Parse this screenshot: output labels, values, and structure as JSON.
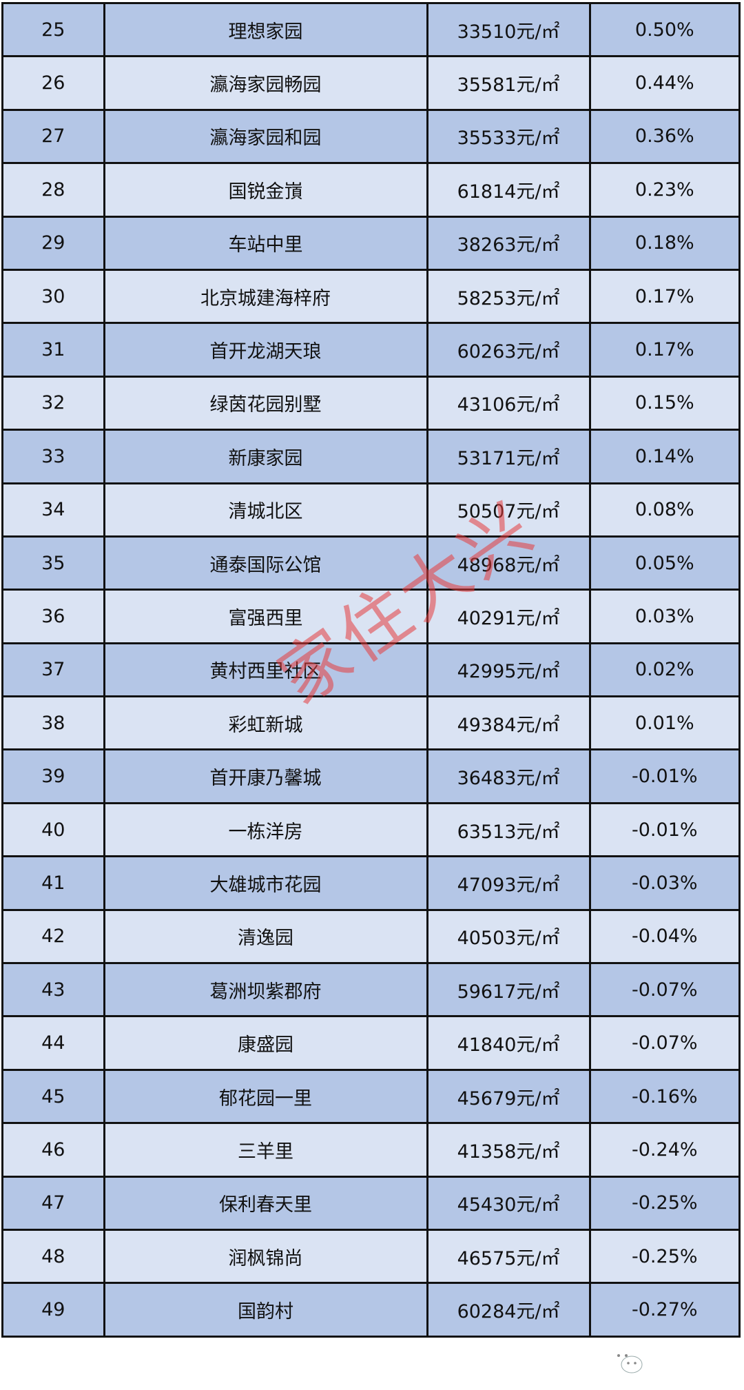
{
  "rows": [
    {
      "rank": "25",
      "name": "理想家园",
      "price": "33510元/㎡",
      "change": "0.50%"
    },
    {
      "rank": "26",
      "name": "瀛海家园畅园",
      "price": "35581元/㎡",
      "change": "0.44%"
    },
    {
      "rank": "27",
      "name": "瀛海家园和园",
      "price": "35533元/㎡",
      "change": "0.36%"
    },
    {
      "rank": "28",
      "name": "国锐金嵿",
      "price": "61814元/㎡",
      "change": "0.23%"
    },
    {
      "rank": "29",
      "name": "车站中里",
      "price": "38263元/㎡",
      "change": "0.18%"
    },
    {
      "rank": "30",
      "name": "北京城建海梓府",
      "price": "58253元/㎡",
      "change": "0.17%"
    },
    {
      "rank": "31",
      "name": "首开龙湖天琅",
      "price": "60263元/㎡",
      "change": "0.17%"
    },
    {
      "rank": "32",
      "name": "绿茵花园别墅",
      "price": "43106元/㎡",
      "change": "0.15%"
    },
    {
      "rank": "33",
      "name": "新康家园",
      "price": "53171元/㎡",
      "change": "0.14%"
    },
    {
      "rank": "34",
      "name": "清城北区",
      "price": "50507元/㎡",
      "change": "0.08%"
    },
    {
      "rank": "35",
      "name": "通泰国际公馆",
      "price": "48968元/㎡",
      "change": "0.05%"
    },
    {
      "rank": "36",
      "name": "富强西里",
      "price": "40291元/㎡",
      "change": "0.03%"
    },
    {
      "rank": "37",
      "name": "黄村西里社区",
      "price": "42995元/㎡",
      "change": "0.02%"
    },
    {
      "rank": "38",
      "name": "彩虹新城",
      "price": "49384元/㎡",
      "change": "0.01%"
    },
    {
      "rank": "39",
      "name": "首开康乃馨城",
      "price": "36483元/㎡",
      "change": "-0.01%"
    },
    {
      "rank": "40",
      "name": "一栋洋房",
      "price": "63513元/㎡",
      "change": "-0.01%"
    },
    {
      "rank": "41",
      "name": "大雄城市花园",
      "price": "47093元/㎡",
      "change": "-0.03%"
    },
    {
      "rank": "42",
      "name": "清逸园",
      "price": "40503元/㎡",
      "change": "-0.04%"
    },
    {
      "rank": "43",
      "name": "葛洲坝紫郡府",
      "price": "59617元/㎡",
      "change": "-0.07%"
    },
    {
      "rank": "44",
      "name": "康盛园",
      "price": "41840元/㎡",
      "change": "-0.07%"
    },
    {
      "rank": "45",
      "name": "郁花园一里",
      "price": "45679元/㎡",
      "change": "-0.16%"
    },
    {
      "rank": "46",
      "name": "三羊里",
      "price": "41358元/㎡",
      "change": "-0.24%"
    },
    {
      "rank": "47",
      "name": "保利春天里",
      "price": "45430元/㎡",
      "change": "-0.25%"
    },
    {
      "rank": "48",
      "name": "润枫锦尚",
      "price": "46575元/㎡",
      "change": "-0.25%"
    },
    {
      "rank": "49",
      "name": "国韵村",
      "price": "60284元/㎡",
      "change": "-0.27%"
    }
  ],
  "watermark": "家住大兴",
  "logo_text": "家住大兴",
  "colors": {
    "dark_row": "#b4c6e6",
    "light_row": "#dae3f3",
    "watermark": "#e63c3c"
  }
}
